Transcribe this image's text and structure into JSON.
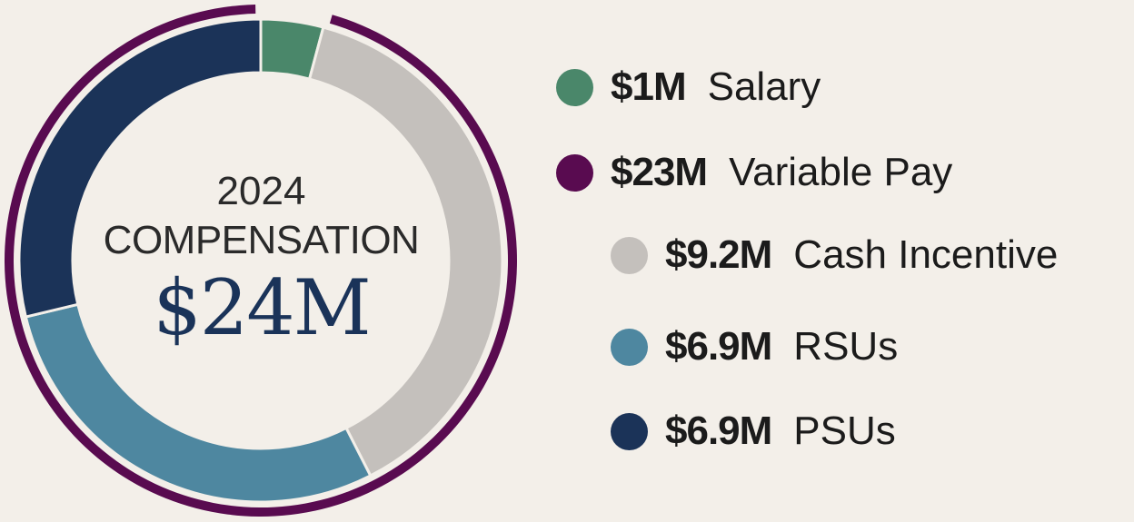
{
  "chart_data": {
    "type": "pie",
    "center": {
      "year": "2024",
      "title": "COMPENSATION",
      "total": "$24M"
    },
    "slices": [
      {
        "key": "salary",
        "amount": "$1M",
        "label": "Salary",
        "value": 1.0,
        "color": "#4a876a"
      },
      {
        "key": "cash",
        "amount": "$9.2M",
        "label": "Cash Incentive",
        "value": 9.2,
        "color": "#c4c0bc"
      },
      {
        "key": "rsu",
        "amount": "$6.9M",
        "label": "RSUs",
        "value": 6.9,
        "color": "#4e87a0"
      },
      {
        "key": "psu",
        "amount": "$6.9M",
        "label": "PSUs",
        "value": 6.9,
        "color": "#1b3358"
      }
    ],
    "variable_pay": {
      "amount": "$23M",
      "label": "Variable Pay",
      "value": 23,
      "color": "#590b50"
    },
    "background": "#f3efe9"
  }
}
